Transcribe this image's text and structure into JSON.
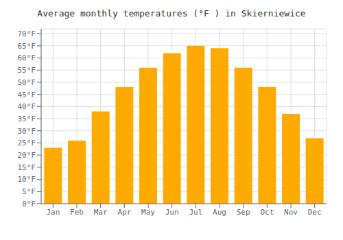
{
  "chart_data": {
    "type": "bar",
    "title": "Average monthly temperatures (°F ) in Skierniewice",
    "categories": [
      "Jan",
      "Feb",
      "Mar",
      "Apr",
      "May",
      "Jun",
      "Jul",
      "Aug",
      "Sep",
      "Oct",
      "Nov",
      "Dec"
    ],
    "values": [
      23,
      26,
      38,
      48,
      56,
      62,
      65,
      64,
      56,
      48,
      37,
      27
    ],
    "color": "#FFAA00",
    "ylim": [
      0,
      72
    ],
    "yticks": [
      {
        "value": 0,
        "label": "0°F"
      },
      {
        "value": 5,
        "label": "5°F"
      },
      {
        "value": 10,
        "label": "10°F"
      },
      {
        "value": 15,
        "label": "15°F"
      },
      {
        "value": 20,
        "label": "20°F"
      },
      {
        "value": 25,
        "label": "25°F"
      },
      {
        "value": 30,
        "label": "30°F"
      },
      {
        "value": 35,
        "label": "35°F"
      },
      {
        "value": 40,
        "label": "40°F"
      },
      {
        "value": 45,
        "label": "45°F"
      },
      {
        "value": 50,
        "label": "50°F"
      },
      {
        "value": 55,
        "label": "55°F"
      },
      {
        "value": 60,
        "label": "60°F"
      },
      {
        "value": 65,
        "label": "65°F"
      },
      {
        "value": 70,
        "label": "70°F"
      }
    ],
    "grid": true
  }
}
